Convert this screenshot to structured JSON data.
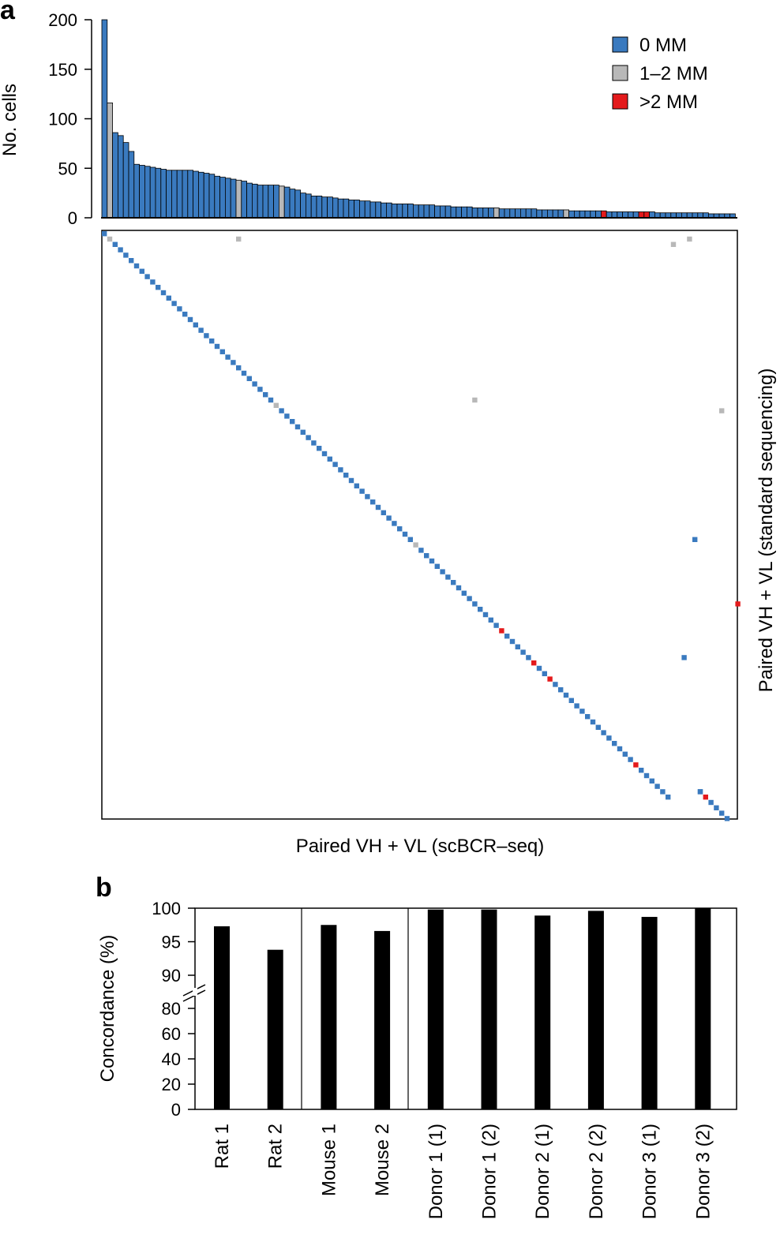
{
  "panel_a": {
    "letter": "a",
    "ylabel": "No. cells",
    "yticks": [
      "0",
      "50",
      "100",
      "150",
      "200"
    ],
    "xlabel": "Paired VH + VL (scBCR–seq)",
    "ylabel_right": "Paired VH + VL (standard sequencing)"
  },
  "panel_b": {
    "letter": "b",
    "ylabel": "Concordance (%)",
    "yticks": [
      "0",
      "20",
      "40",
      "60",
      "80",
      "90",
      "95",
      "100"
    ]
  },
  "colors": {
    "mm0": "#3a7abf",
    "mm12": "#b8b8b8",
    "mm2plus": "#e41a1c",
    "black": "#000000"
  },
  "chart_data": [
    {
      "type": "bar",
      "title": "",
      "ylabel": "No. cells",
      "xlabel": "",
      "ylim": [
        0,
        200
      ],
      "legend": {
        "position": "top-right",
        "entries": [
          {
            "label": "0 MM",
            "color": "#3a7abf"
          },
          {
            "label": "1–2 MM",
            "color": "#b8b8b8"
          },
          {
            "label": ">2 MM",
            "color": "#e41a1c"
          }
        ]
      },
      "values": [
        200,
        116,
        86,
        83,
        76,
        67,
        54,
        53,
        52,
        51,
        50,
        49,
        48,
        48,
        48,
        48,
        48,
        47,
        46,
        45,
        44,
        42,
        41,
        40,
        39,
        38,
        37,
        35,
        34,
        33,
        33,
        33,
        33,
        32,
        31,
        29,
        28,
        25,
        24,
        22,
        22,
        21,
        21,
        20,
        19,
        19,
        18,
        18,
        17,
        17,
        16,
        16,
        15,
        15,
        14,
        14,
        14,
        14,
        13,
        13,
        13,
        13,
        12,
        12,
        12,
        11,
        11,
        11,
        11,
        10,
        10,
        10,
        10,
        10,
        9,
        9,
        9,
        9,
        9,
        9,
        9,
        8,
        8,
        8,
        8,
        8,
        8,
        7,
        7,
        7,
        7,
        7,
        7,
        7,
        6,
        6,
        6,
        6,
        6,
        6,
        6,
        6,
        6,
        5,
        5,
        5,
        5,
        5,
        5,
        5,
        5,
        5,
        5,
        4,
        4,
        4,
        4,
        4,
        4,
        4,
        4,
        4,
        4,
        4,
        4,
        4,
        4,
        4,
        3,
        3,
        3,
        3,
        3,
        3,
        3,
        3,
        3,
        3,
        3,
        3,
        3,
        3,
        3,
        3,
        3,
        3,
        3,
        3,
        2,
        2,
        2,
        2,
        2,
        2,
        2,
        2,
        2,
        2,
        1,
        1,
        1,
        1,
        1,
        1,
        1,
        1,
        1,
        1,
        1,
        1,
        1,
        1,
        1,
        1,
        1,
        1,
        1,
        1,
        1,
        1,
        1,
        1,
        1,
        1,
        1,
        1,
        1,
        1,
        1,
        1,
        1,
        1,
        1,
        1
      ],
      "mismatch_class": {
        "1": "1-2",
        "25": "1-2",
        "33": "1-2",
        "73": "1-2",
        "86": "1-2",
        "93": ">2",
        "100": ">2",
        "101": ">2"
      }
    },
    {
      "type": "heatmap",
      "xlabel": "Paired VH + VL (scBCR–seq)",
      "ylabel": "Paired VH + VL (standard sequencing)",
      "note_matrix": "cells placed where scBCR-seq pairing (column) matches standard pairing (row)",
      "diagonal_count": 106,
      "diagonal_classes": {
        "1": "1-2",
        "32": "1-2",
        "58": "1-2",
        "74": ">2",
        "80": ">2",
        "83": ">2",
        "99": ">2"
      },
      "off_diagonal": [
        {
          "col": 25,
          "row": 1,
          "class": "1-2"
        },
        {
          "col": 106,
          "row": 2,
          "class": "1-2"
        },
        {
          "col": 109,
          "row": 1,
          "class": "1-2"
        },
        {
          "col": 69,
          "row": 31,
          "class": "1-2"
        },
        {
          "col": 115,
          "row": 33,
          "class": "1-2"
        },
        {
          "col": 110,
          "row": 57,
          "class": "0"
        },
        {
          "col": 118,
          "row": 69,
          "class": ">2"
        },
        {
          "col": 108,
          "row": 79,
          "class": "0"
        },
        {
          "col": 111,
          "row": 104,
          "class": "0"
        }
      ],
      "trailing_diagonal": [
        {
          "col": 111,
          "row": 104,
          "class": "0"
        },
        {
          "col": 112,
          "row": 105,
          "class": ">2"
        },
        {
          "col": 113,
          "row": 106,
          "class": "0"
        },
        {
          "col": 114,
          "row": 107,
          "class": "0"
        },
        {
          "col": 115,
          "row": 108,
          "class": "0"
        },
        {
          "col": 116,
          "row": 109,
          "class": "0"
        }
      ]
    },
    {
      "type": "bar",
      "title": "",
      "ylabel": "Concordance (%)",
      "xlabel": "",
      "ylim_broken": {
        "lower": [
          0,
          80
        ],
        "upper": [
          90,
          100
        ]
      },
      "groups": [
        {
          "categories": [
            "Rat 1",
            "Rat 2"
          ]
        },
        {
          "categories": [
            "Mouse 1",
            "Mouse 2"
          ]
        },
        {
          "categories": [
            "Donor 1 (1)",
            "Donor 1 (2)",
            "Donor 2 (1)",
            "Donor 2 (2)",
            "Donor 3 (1)",
            "Donor 3 (2)"
          ]
        }
      ],
      "categories": [
        "Rat 1",
        "Rat 2",
        "Mouse 1",
        "Mouse 2",
        "Donor 1 (1)",
        "Donor 1 (2)",
        "Donor 2 (1)",
        "Donor 2 (2)",
        "Donor 3 (1)",
        "Donor 3 (2)"
      ],
      "values": [
        97.3,
        93.8,
        97.5,
        96.6,
        99.8,
        99.8,
        98.9,
        99.6,
        98.7,
        100
      ]
    }
  ]
}
